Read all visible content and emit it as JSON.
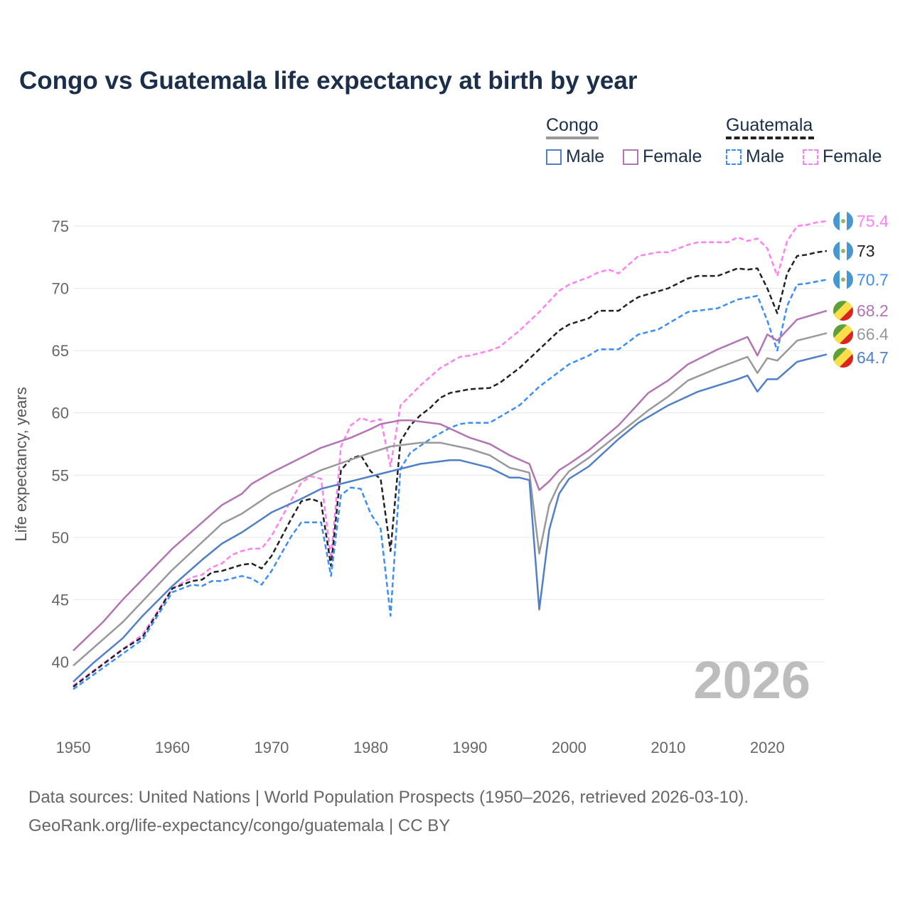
{
  "chart_data": {
    "type": "line",
    "title": "Congo vs Guatemala life expectancy at birth by year",
    "xlabel": "",
    "ylabel": "Life expectancy, years",
    "xlim": [
      1950,
      2026
    ],
    "ylim": [
      36,
      78
    ],
    "x_ticks": [
      1950,
      1960,
      1970,
      1980,
      1990,
      2000,
      2010,
      2020
    ],
    "y_ticks": [
      40,
      45,
      50,
      55,
      60,
      65,
      70,
      75
    ],
    "grid": true,
    "current_year": "2026",
    "legend": {
      "placement": "top-right",
      "groups": [
        {
          "name": "Congo",
          "items": [
            "Male",
            "Female"
          ]
        },
        {
          "name": "Guatemala",
          "items": [
            "Male",
            "Female"
          ]
        }
      ]
    },
    "series": [
      {
        "id": "gt-female",
        "name": "Guatemala Female",
        "country": "Guatemala",
        "color": "#ff80f5",
        "dashed": true,
        "end_label": "75.4",
        "x": [
          1950,
          1957,
          1960,
          1962,
          1963,
          1964,
          1965,
          1966,
          1967,
          1968,
          1969,
          1970,
          1972,
          1973,
          1974,
          1975,
          1976,
          1977,
          1978,
          1979,
          1980,
          1981,
          1982,
          1983,
          1985,
          1987,
          1989,
          1990,
          1992,
          1993,
          1995,
          1997,
          1999,
          2000,
          2002,
          2003,
          2004,
          2005,
          2007,
          2009,
          2010,
          2012,
          2013,
          2016,
          2017,
          2018,
          2019,
          2020,
          2021,
          2022,
          2023,
          2024,
          2025,
          2026
        ],
        "y": [
          38.1,
          42.2,
          45.9,
          46.8,
          47.0,
          47.6,
          47.9,
          48.6,
          48.9,
          49.1,
          49.1,
          50.1,
          53.0,
          54.4,
          54.9,
          54.7,
          48.3,
          57.3,
          59.0,
          59.6,
          59.3,
          59.5,
          55.7,
          60.6,
          62.2,
          63.6,
          64.5,
          64.6,
          65.0,
          65.3,
          66.6,
          68.1,
          69.8,
          70.3,
          70.9,
          71.3,
          71.5,
          71.2,
          72.6,
          72.9,
          72.9,
          73.5,
          73.7,
          73.7,
          74.1,
          73.8,
          74.0,
          73.2,
          71.0,
          73.8,
          75.0,
          75.1,
          75.3,
          75.4
        ]
      },
      {
        "id": "gt-total",
        "name": "Guatemala",
        "country": "Guatemala",
        "color": "#222222",
        "dashed": true,
        "end_label": "73",
        "x": [
          1950,
          1955,
          1957,
          1960,
          1962,
          1963,
          1964,
          1965,
          1967,
          1968,
          1969,
          1970,
          1972,
          1973,
          1974,
          1975,
          1976,
          1977,
          1978,
          1979,
          1980,
          1981,
          1982,
          1983,
          1984,
          1985,
          1986,
          1987,
          1988,
          1990,
          1992,
          1993,
          1995,
          1997,
          1999,
          2000,
          2002,
          2003,
          2005,
          2006,
          2007,
          2010,
          2012,
          2013,
          2015,
          2017,
          2018,
          2019,
          2020,
          2021,
          2022,
          2023,
          2024,
          2025,
          2026
        ],
        "y": [
          38.0,
          41.0,
          42.0,
          45.9,
          46.5,
          46.6,
          47.2,
          47.3,
          47.8,
          47.9,
          47.5,
          48.5,
          51.5,
          52.9,
          53.1,
          52.8,
          47.7,
          55.4,
          56.3,
          56.6,
          55.3,
          54.7,
          48.9,
          57.7,
          59.0,
          59.8,
          60.4,
          61.2,
          61.6,
          61.9,
          62.0,
          62.4,
          63.6,
          65.1,
          66.6,
          67.1,
          67.6,
          68.2,
          68.2,
          68.8,
          69.3,
          70.0,
          70.8,
          71.0,
          71.0,
          71.6,
          71.5,
          71.6,
          70.0,
          68.0,
          71.2,
          72.6,
          72.7,
          72.9,
          73.0
        ]
      },
      {
        "id": "gt-male",
        "name": "Guatemala Male",
        "country": "Guatemala",
        "color": "#3a8ef5",
        "dashed": true,
        "end_label": "70.7",
        "x": [
          1950,
          1957,
          1960,
          1962,
          1963,
          1964,
          1965,
          1967,
          1968,
          1969,
          1970,
          1972,
          1973,
          1975,
          1976,
          1977,
          1978,
          1979,
          1980,
          1981,
          1982,
          1983,
          1984,
          1986,
          1988,
          1989,
          1990,
          1992,
          1995,
          1997,
          2000,
          2002,
          2003,
          2005,
          2007,
          2009,
          2012,
          2014,
          2015,
          2017,
          2019,
          2020,
          2021,
          2022,
          2023,
          2024,
          2026
        ],
        "y": [
          37.8,
          41.8,
          45.6,
          46.2,
          46.1,
          46.5,
          46.5,
          46.9,
          46.7,
          46.2,
          47.3,
          50.1,
          51.2,
          51.2,
          46.9,
          53.4,
          54.0,
          53.9,
          51.9,
          50.7,
          43.7,
          55.5,
          56.8,
          57.9,
          58.8,
          59.1,
          59.2,
          59.2,
          60.6,
          62.1,
          63.9,
          64.6,
          65.1,
          65.1,
          66.3,
          66.7,
          68.1,
          68.3,
          68.4,
          69.1,
          69.4,
          67.4,
          65.0,
          68.6,
          70.3,
          70.4,
          70.7
        ]
      },
      {
        "id": "cg-female",
        "name": "Congo Female",
        "country": "Congo",
        "color": "#b274b4",
        "dashed": false,
        "end_label": "68.2",
        "x": [
          1950,
          1953,
          1955,
          1960,
          1965,
          1967,
          1968,
          1970,
          1975,
          1978,
          1980,
          1981,
          1983,
          1984,
          1987,
          1990,
          1992,
          1994,
          1996,
          1997,
          1998,
          1999,
          2000,
          2002,
          2005,
          2008,
          2010,
          2012,
          2015,
          2018,
          2019,
          2020,
          2021,
          2023,
          2026
        ],
        "y": [
          40.9,
          43.2,
          45.0,
          49.1,
          52.6,
          53.5,
          54.3,
          55.2,
          57.2,
          58.0,
          58.7,
          59.1,
          59.4,
          59.4,
          59.1,
          58.0,
          57.5,
          56.6,
          55.9,
          53.8,
          54.5,
          55.4,
          55.9,
          57.0,
          59.0,
          61.6,
          62.6,
          63.9,
          65.1,
          66.1,
          64.6,
          66.3,
          65.8,
          67.5,
          68.2
        ]
      },
      {
        "id": "cg-total",
        "name": "Congo",
        "country": "Congo",
        "color": "#999999",
        "dashed": false,
        "end_label": "66.4",
        "x": [
          1950,
          1955,
          1960,
          1965,
          1967,
          1970,
          1975,
          1980,
          1982,
          1985,
          1987,
          1990,
          1992,
          1994,
          1996,
          1997,
          1998,
          1999,
          2000,
          2002,
          2005,
          2008,
          2010,
          2012,
          2015,
          2018,
          2019,
          2020,
          2021,
          2023,
          2026
        ],
        "y": [
          39.7,
          43.2,
          47.4,
          51.1,
          51.9,
          53.5,
          55.4,
          56.8,
          57.3,
          57.6,
          57.6,
          57.1,
          56.6,
          55.6,
          55.2,
          48.7,
          52.6,
          54.3,
          55.3,
          56.4,
          58.3,
          60.2,
          61.3,
          62.6,
          63.6,
          64.5,
          63.2,
          64.4,
          64.2,
          65.8,
          66.4
        ]
      },
      {
        "id": "cg-male",
        "name": "Congo Male",
        "country": "Congo",
        "color": "#4f7fc9",
        "dashed": false,
        "end_label": "64.7",
        "x": [
          1950,
          1952,
          1955,
          1957,
          1960,
          1963,
          1965,
          1967,
          1970,
          1973,
          1975,
          1978,
          1980,
          1983,
          1985,
          1988,
          1989,
          1992,
          1994,
          1995,
          1996,
          1997,
          1998,
          1999,
          2000,
          2002,
          2005,
          2007,
          2010,
          2013,
          2015,
          2017,
          2018,
          2019,
          2020,
          2021,
          2023,
          2026
        ],
        "y": [
          38.4,
          39.9,
          41.9,
          43.7,
          46.1,
          48.2,
          49.5,
          50.4,
          52.0,
          53.1,
          53.9,
          54.5,
          54.9,
          55.5,
          55.9,
          56.2,
          56.2,
          55.6,
          54.8,
          54.8,
          54.6,
          44.2,
          50.6,
          53.5,
          54.7,
          55.7,
          57.9,
          59.2,
          60.6,
          61.7,
          62.2,
          62.7,
          63.0,
          61.7,
          62.7,
          62.7,
          64.1,
          64.7
        ]
      }
    ]
  },
  "footer": {
    "line1": "Data sources: United Nations | World Population Prospects (1950–2026, retrieved 2026-03-10).",
    "line2": "GeoRank.org/life-expectancy/congo/guatemala | CC BY"
  }
}
